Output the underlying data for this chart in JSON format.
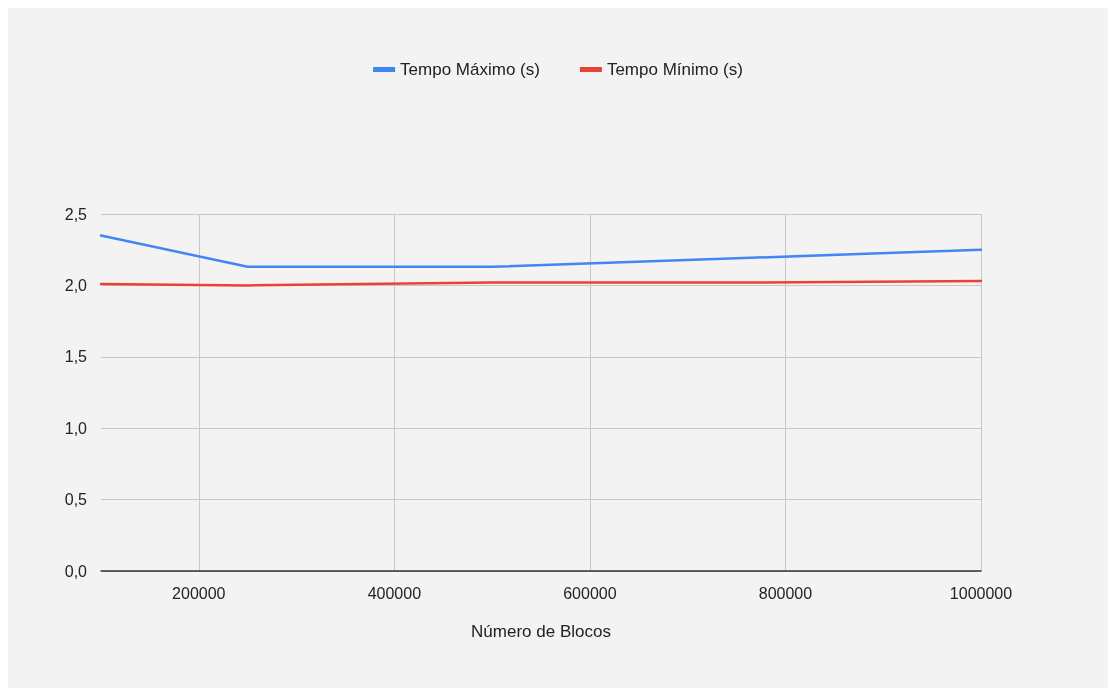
{
  "chart_data": {
    "type": "line",
    "xlabel": "Número de Blocos",
    "x": [
      100000,
      250000,
      500000,
      750000,
      1000000
    ],
    "series": [
      {
        "name": "Tempo Máximo (s)",
        "color": "#4285f4",
        "values": [
          2.35,
          2.13,
          2.13,
          2.19,
          2.25
        ]
      },
      {
        "name": "Tempo Mínimo (s)",
        "color": "#ea4335",
        "values": [
          2.01,
          2.0,
          2.02,
          2.02,
          2.03
        ]
      }
    ],
    "xlim": [
      100000,
      1000000
    ],
    "xticks": [
      200000,
      400000,
      600000,
      800000,
      1000000
    ],
    "ylim": [
      0,
      2.5
    ],
    "yticks": [
      {
        "value": 0,
        "label": "0,0"
      },
      {
        "value": 0.5,
        "label": "0,5"
      },
      {
        "value": 1,
        "label": "1,0"
      },
      {
        "value": 1.5,
        "label": "1,5"
      },
      {
        "value": 2,
        "label": "2,0"
      },
      {
        "value": 2.5,
        "label": "2,5"
      }
    ],
    "grid": true,
    "legend": "top",
    "marker": "none",
    "line_style": "solid"
  }
}
